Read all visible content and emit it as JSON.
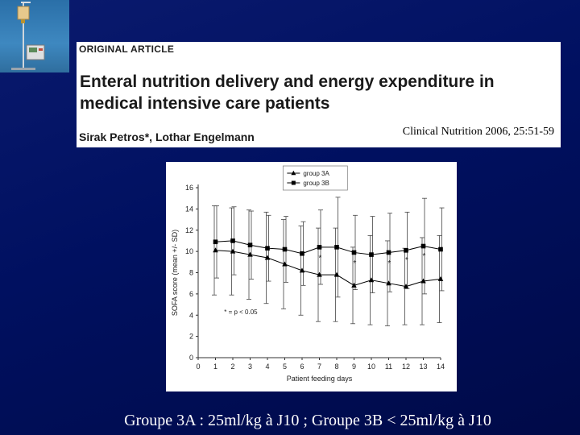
{
  "header": {
    "label": "ORIGINAL ARTICLE",
    "title": "Enteral nutrition delivery and energy expenditure in medical intensive care patients",
    "authors": "Sirak Petros*, Lothar Engelmann",
    "citation": "Clinical Nutrition 2006, 25:51-59"
  },
  "caption": "Groupe 3A : 25ml/kg à J10 ; Groupe 3B < 25ml/kg à J10",
  "colors": {
    "background": "#001060",
    "panel": "#ffffff",
    "series_line": "#000000",
    "caption_text": "#ffffff"
  },
  "chart_data": {
    "type": "line",
    "xlabel": "Patient feeding days",
    "ylabel": "SOFA score (mean +/- SD)",
    "xlim": [
      0,
      14
    ],
    "ylim": [
      0,
      16
    ],
    "x_ticks": [
      0,
      1,
      2,
      3,
      4,
      5,
      6,
      7,
      8,
      9,
      10,
      11,
      12,
      13,
      14
    ],
    "y_ticks": [
      0,
      2,
      4,
      6,
      8,
      10,
      12,
      14,
      16
    ],
    "legend_position": "top-center",
    "annotation": "* = p < 0.05",
    "series": [
      {
        "name": "group 3A",
        "marker": "triangle",
        "x": [
          1,
          2,
          3,
          4,
          5,
          6,
          7,
          8,
          9,
          10,
          11,
          12,
          13,
          14
        ],
        "values": [
          10.1,
          10.0,
          9.7,
          9.4,
          8.8,
          8.2,
          7.8,
          7.8,
          6.8,
          7.3,
          7.0,
          6.7,
          7.2,
          7.4
        ],
        "error": [
          4.2,
          4.1,
          4.2,
          4.3,
          4.2,
          4.2,
          4.4,
          4.4,
          3.6,
          4.2,
          4.0,
          3.6,
          4.1,
          4.1
        ]
      },
      {
        "name": "group 3B",
        "marker": "square",
        "x": [
          1,
          2,
          3,
          4,
          5,
          6,
          7,
          8,
          9,
          10,
          11,
          12,
          13,
          14
        ],
        "values": [
          10.9,
          11.0,
          10.6,
          10.3,
          10.2,
          9.8,
          10.4,
          10.4,
          9.9,
          9.7,
          9.9,
          10.1,
          10.5,
          10.2
        ],
        "error": [
          3.4,
          3.2,
          3.2,
          3.1,
          3.1,
          3.0,
          3.5,
          4.7,
          3.5,
          3.6,
          3.7,
          3.6,
          4.5,
          3.9
        ]
      }
    ],
    "significance_markers": [
      {
        "x": 7,
        "y": 9.6,
        "label": "*"
      },
      {
        "x": 9,
        "y": 9.1,
        "label": "*"
      },
      {
        "x": 11,
        "y": 9.1,
        "label": "*"
      },
      {
        "x": 12,
        "y": 9.4,
        "label": "*"
      },
      {
        "x": 13,
        "y": 9.8,
        "label": "*"
      }
    ]
  }
}
